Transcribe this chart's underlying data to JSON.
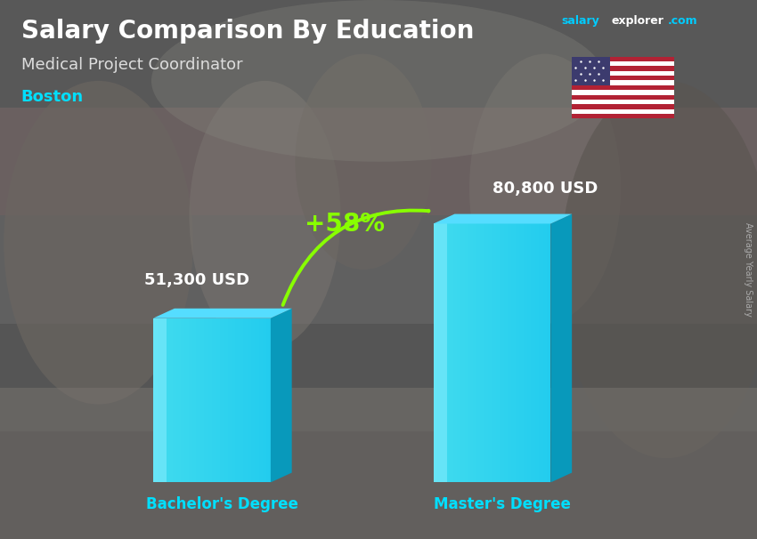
{
  "title": "Salary Comparison By Education",
  "subtitle": "Medical Project Coordinator",
  "city": "Boston",
  "categories": [
    "Bachelor's Degree",
    "Master's Degree"
  ],
  "values": [
    51300,
    80800
  ],
  "value_labels": [
    "51,300 USD",
    "80,800 USD"
  ],
  "pct_change": "+58%",
  "bar_color_main": "#1ECFEF",
  "bar_color_light": "#7EEEFF",
  "bar_color_dark": "#0899BB",
  "bar_color_top": "#55DDFF",
  "arrow_color": "#88FF00",
  "pct_color": "#88FF00",
  "title_color": "#FFFFFF",
  "subtitle_color": "#DDDDDD",
  "city_color": "#00DFFF",
  "value_color": "#FFFFFF",
  "xlabel_color": "#00DFFF",
  "salary_label": "Average Yearly Salary",
  "salary_label_color": "#AAAAAA",
  "bg_dark": "#3A3A3A",
  "bg_mid": "#606060",
  "bg_light": "#888888"
}
